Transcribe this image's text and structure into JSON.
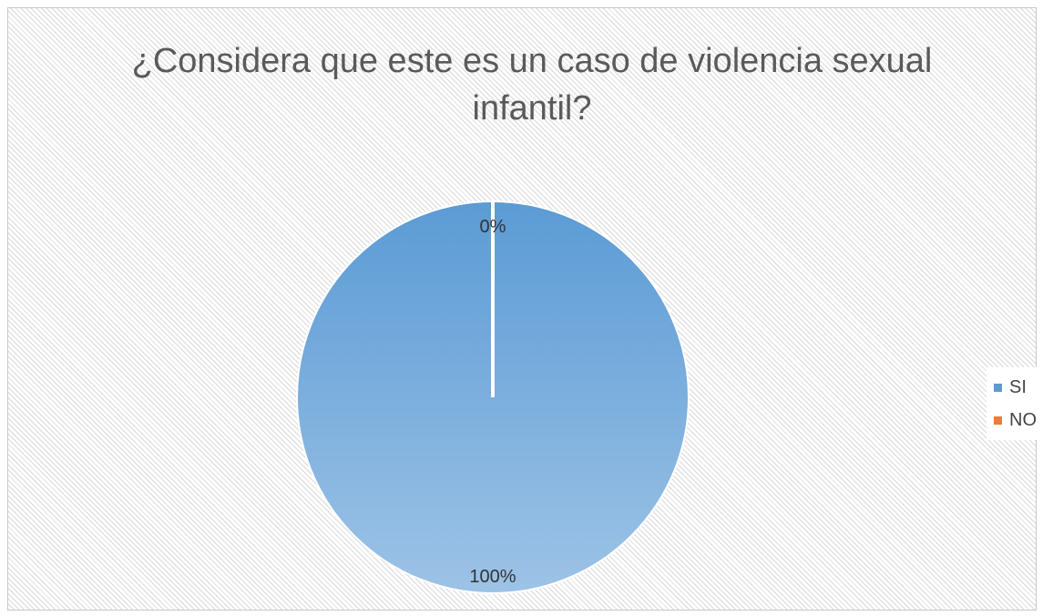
{
  "chart_data": {
    "type": "pie",
    "title": "¿Considera  que este es un caso de violencia sexual\ninfantil?",
    "slices": [
      {
        "label": "SI",
        "value": 100,
        "data_label": "100%",
        "color": "#5b9bd5",
        "color_light": "#9dc3e6"
      },
      {
        "label": "NO",
        "value": 0,
        "data_label": "0%",
        "color": "#ed7d31"
      }
    ],
    "legend_position": "right"
  }
}
